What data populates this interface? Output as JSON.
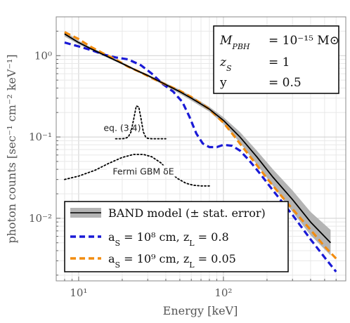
{
  "chart_data": {
    "type": "line",
    "xlabel": "Energy [keV]",
    "ylabel": "photon counts [sec⁻¹ cm⁻² keV⁻¹]",
    "xscale": "log",
    "yscale": "log",
    "xlim": [
      7,
      700
    ],
    "ylim": [
      0.0017,
      3.0
    ],
    "grid": true,
    "legend_position": "bottom-left",
    "x_ticks": [
      {
        "value": 10,
        "label": "10¹"
      },
      {
        "value": 100,
        "label": "10²"
      }
    ],
    "y_ticks": [
      {
        "value": 0.01,
        "label": "10⁻²"
      },
      {
        "value": 0.1,
        "label": "10⁻¹"
      },
      {
        "value": 1,
        "label": "10⁰"
      }
    ],
    "params_box": [
      {
        "symbol": "M_PBH",
        "value": "= 10⁻¹⁵ M⊙"
      },
      {
        "symbol": "z_S",
        "value": "= 1"
      },
      {
        "symbol": "y",
        "value": "= 0.5"
      }
    ],
    "annotations": [
      {
        "text": "eq. (3.4)",
        "x": 20.0,
        "y": 0.128
      },
      {
        "text": "Fermi GBM δE",
        "x": 28.0,
        "y": 0.036
      }
    ],
    "series": [
      {
        "name": "BAND model (± stat. error)",
        "color": "#000000",
        "style": "solid",
        "band_color": "#b4b4b4",
        "x": [
          8,
          10,
          12,
          15,
          20,
          25,
          30,
          40,
          50,
          60,
          80,
          100,
          130,
          170,
          220,
          300,
          400,
          550
        ],
        "values": [
          1.85,
          1.45,
          1.23,
          1.02,
          0.8,
          0.66,
          0.57,
          0.44,
          0.36,
          0.3,
          0.22,
          0.16,
          0.1,
          0.057,
          0.032,
          0.017,
          0.009,
          0.005
        ],
        "band_lower": [
          1.72,
          1.38,
          1.18,
          0.98,
          0.78,
          0.64,
          0.55,
          0.42,
          0.34,
          0.28,
          0.205,
          0.145,
          0.085,
          0.046,
          0.025,
          0.012,
          0.0062,
          0.0035
        ],
        "band_upper": [
          2.0,
          1.53,
          1.28,
          1.06,
          0.83,
          0.68,
          0.59,
          0.46,
          0.38,
          0.32,
          0.235,
          0.175,
          0.115,
          0.068,
          0.04,
          0.022,
          0.012,
          0.0072
        ]
      },
      {
        "name": "a_S = 10⁸ cm, z_L = 0.8",
        "color": "#1a1ad6",
        "style": "dashed",
        "x": [
          8,
          10,
          12,
          15,
          18,
          22,
          27,
          32,
          38,
          45,
          52,
          58,
          65,
          72,
          80,
          90,
          100,
          115,
          130,
          150,
          180,
          220,
          300,
          400,
          500,
          600
        ],
        "values": [
          1.45,
          1.3,
          1.18,
          1.03,
          0.95,
          0.9,
          0.76,
          0.6,
          0.45,
          0.36,
          0.27,
          0.18,
          0.11,
          0.083,
          0.075,
          0.075,
          0.08,
          0.078,
          0.068,
          0.052,
          0.035,
          0.022,
          0.011,
          0.0055,
          0.0033,
          0.0022
        ]
      },
      {
        "name": "a_S = 10⁹ cm, z_L = 0.05",
        "color": "#f28c0f",
        "style": "dashed",
        "x": [
          8,
          10,
          12,
          15,
          18,
          22,
          27,
          32,
          40,
          50,
          60,
          80,
          100,
          120,
          140,
          170,
          200,
          250,
          300,
          400,
          500,
          600
        ],
        "values": [
          1.95,
          1.6,
          1.3,
          1.05,
          0.9,
          0.73,
          0.62,
          0.53,
          0.44,
          0.37,
          0.31,
          0.22,
          0.15,
          0.1,
          0.07,
          0.045,
          0.031,
          0.019,
          0.013,
          0.0072,
          0.0045,
          0.0032
        ]
      },
      {
        "name": "eq. (3.4)",
        "color": "#000000",
        "style": "dotted",
        "x": [
          18,
          20,
          21,
          22,
          23,
          24,
          25,
          26,
          27,
          28,
          29,
          30,
          32,
          35,
          40
        ],
        "values": [
          0.095,
          0.095,
          0.096,
          0.1,
          0.115,
          0.165,
          0.24,
          0.235,
          0.165,
          0.115,
          0.1,
          0.096,
          0.095,
          0.095,
          0.095
        ]
      },
      {
        "name": "Fermi GBM δE",
        "color": "#000000",
        "style": "dotted",
        "x": [
          8,
          10,
          13,
          16,
          20,
          24,
          28,
          32,
          37,
          42,
          48,
          55,
          62,
          70,
          80
        ],
        "values": [
          0.03,
          0.033,
          0.039,
          0.047,
          0.056,
          0.061,
          0.061,
          0.057,
          0.048,
          0.038,
          0.031,
          0.027,
          0.0255,
          0.025,
          0.025
        ]
      }
    ]
  }
}
